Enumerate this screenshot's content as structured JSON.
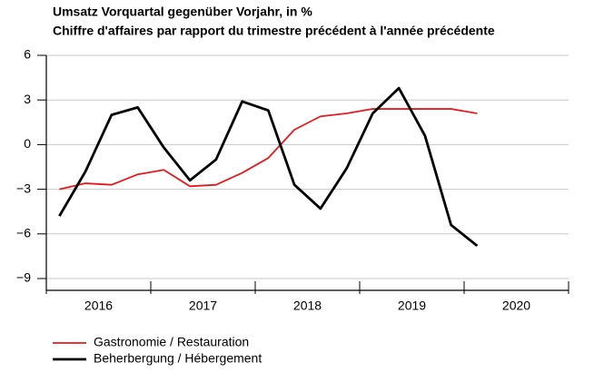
{
  "chart_data": {
    "type": "line",
    "title": "Umsatz Vorquartal gegenüber Vorjahr, in %",
    "subtitle": "Chiffre d'affaires par rapport du trimestre précédent à l'année précédente",
    "categories": [
      null,
      null,
      null,
      null,
      null,
      null,
      null,
      null,
      null,
      null,
      null,
      null,
      null,
      null,
      null,
      null,
      null
    ],
    "year_labels": [
      "2016",
      "2017",
      "2018",
      "2019",
      "2020"
    ],
    "series": [
      {
        "name": "Gastronomie / Restauration",
        "color": "#e8191c",
        "values": [
          -3.0,
          -2.6,
          -2.7,
          -2.0,
          -1.7,
          -2.8,
          -2.7,
          -1.9,
          -0.9,
          1.0,
          1.9,
          2.1,
          2.4,
          2.4,
          2.4,
          2.4,
          2.1
        ]
      },
      {
        "name": "Beherbergung / Hébergement",
        "color": "#000000",
        "values": [
          -4.8,
          -1.8,
          2.0,
          2.5,
          -0.2,
          -2.4,
          -1.0,
          2.9,
          2.3,
          -2.7,
          -4.3,
          -1.6,
          2.1,
          3.8,
          0.6,
          -5.4,
          -6.8
        ]
      }
    ],
    "ylim": [
      -9,
      6
    ],
    "yticks": [
      {
        "value": -9,
        "label": "−9"
      },
      {
        "value": -6,
        "label": "−6"
      },
      {
        "value": -3,
        "label": "−3"
      },
      0,
      3,
      6
    ],
    "grid": true
  }
}
